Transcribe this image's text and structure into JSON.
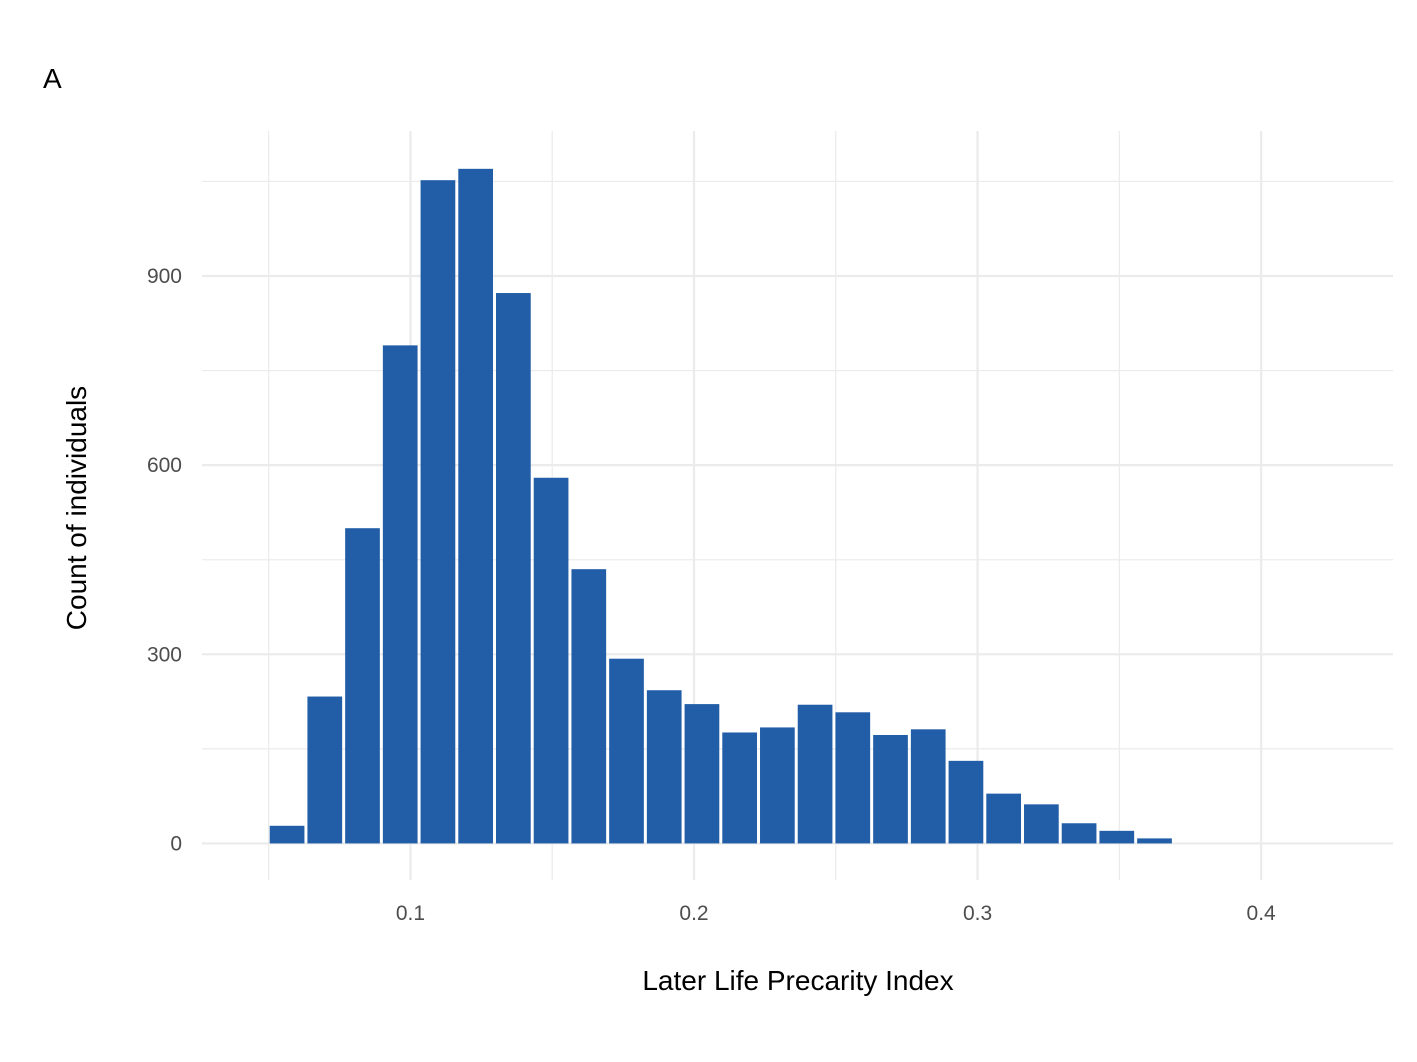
{
  "panel_tag": "A",
  "chart_data": {
    "type": "bar",
    "title": "",
    "xlabel": "Later Life Precarity Index",
    "ylabel": "Count of individuals",
    "x_ticks": [
      0.1,
      0.2,
      0.3,
      0.4
    ],
    "x_tick_labels": [
      "0.1",
      "0.2",
      "0.3",
      "0.4"
    ],
    "y_ticks": [
      0,
      300,
      600,
      900
    ],
    "y_tick_labels": [
      "0",
      "300",
      "600",
      "900"
    ],
    "xlim": [
      0.0265,
      0.4465
    ],
    "ylim": [
      -58,
      1130
    ],
    "bin_width": 0.0133,
    "bin_centers": [
      0.0565,
      0.0698,
      0.0831,
      0.0964,
      0.1097,
      0.123,
      0.1363,
      0.1496,
      0.1629,
      0.1762,
      0.1895,
      0.2028,
      0.2161,
      0.2294,
      0.2427,
      0.256,
      0.2693,
      0.2826,
      0.2959,
      0.3092,
      0.3225,
      0.3358,
      0.3491,
      0.3624
    ],
    "values": [
      28,
      233,
      500,
      790,
      1052,
      1070,
      873,
      580,
      435,
      293,
      243,
      221,
      176,
      184,
      220,
      208,
      172,
      181,
      131,
      79,
      62,
      32,
      20,
      8
    ],
    "bar_color": "#225ea8",
    "grid": true,
    "legend": "none"
  }
}
